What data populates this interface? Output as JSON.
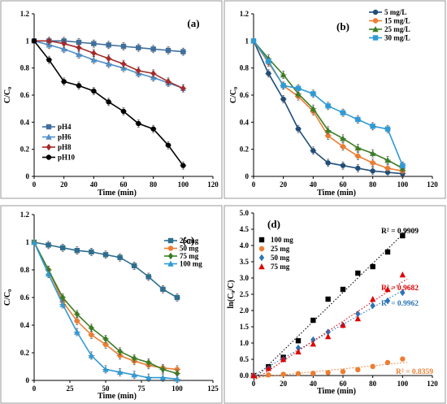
{
  "chart_data": [
    {
      "type": "line",
      "panel_label": "(a)",
      "xlabel": "Time (min)",
      "ylabel": "C/C₀",
      "xlim": [
        0,
        120
      ],
      "ylim": [
        0,
        1.2
      ],
      "xticks": [
        0,
        20,
        40,
        60,
        80,
        100,
        120
      ],
      "yticks": [
        0,
        0.2,
        0.4,
        0.6,
        0.8,
        1,
        1.2
      ],
      "ytick_labels": [
        "0",
        "0.2",
        "0.4",
        "0.6",
        "0.8",
        "1",
        "1.2"
      ],
      "legend_position": "bottom-left",
      "error_bars": true,
      "series": [
        {
          "name": "pH4",
          "color": "#3F6F9E",
          "marker": "square",
          "x": [
            0,
            10,
            20,
            30,
            40,
            50,
            60,
            70,
            80,
            90,
            100
          ],
          "y": [
            1.0,
            1.0,
            1.0,
            0.99,
            0.98,
            0.97,
            0.96,
            0.95,
            0.94,
            0.93,
            0.92
          ]
        },
        {
          "name": "pH6",
          "color": "#4F8FC8",
          "marker": "triangle",
          "x": [
            0,
            10,
            20,
            30,
            40,
            50,
            60,
            70,
            80,
            90,
            100
          ],
          "y": [
            1.0,
            0.97,
            0.94,
            0.9,
            0.86,
            0.83,
            0.8,
            0.76,
            0.73,
            0.69,
            0.65
          ]
        },
        {
          "name": "pH8",
          "color": "#A52A2A",
          "marker": "diamond",
          "x": [
            0,
            10,
            20,
            30,
            40,
            50,
            60,
            70,
            80,
            90,
            100
          ],
          "y": [
            1.0,
            1.0,
            0.98,
            0.95,
            0.91,
            0.87,
            0.83,
            0.78,
            0.76,
            0.7,
            0.65
          ]
        },
        {
          "name": "pH10",
          "color": "#000000",
          "marker": "circle",
          "x": [
            0,
            10,
            20,
            30,
            40,
            50,
            60,
            70,
            80,
            90,
            100
          ],
          "y": [
            1.0,
            0.86,
            0.7,
            0.67,
            0.63,
            0.55,
            0.48,
            0.39,
            0.35,
            0.23,
            0.08
          ]
        }
      ]
    },
    {
      "type": "line",
      "panel_label": "(b)",
      "xlabel": "Time (min)",
      "ylabel": "C/C₀",
      "xlim": [
        0,
        120
      ],
      "ylim": [
        0,
        1.2
      ],
      "xticks": [
        0,
        20,
        40,
        60,
        80,
        100,
        120
      ],
      "yticks": [
        0,
        0.2,
        0.4,
        0.6,
        0.8,
        1,
        1.2
      ],
      "ytick_labels": [
        "0",
        "0.2",
        "0.4",
        "0.6",
        "0.8",
        "1",
        "1.2"
      ],
      "legend_position": "top-right",
      "error_bars": true,
      "series": [
        {
          "name": "5 mg/L",
          "color": "#1F4E79",
          "marker": "circle",
          "x": [
            0,
            10,
            20,
            30,
            40,
            50,
            60,
            70,
            80,
            90,
            100
          ],
          "y": [
            1.0,
            0.76,
            0.57,
            0.35,
            0.19,
            0.1,
            0.08,
            0.06,
            0.04,
            0.03,
            0.02
          ]
        },
        {
          "name": "15 mg/L",
          "color": "#ED7D31",
          "marker": "circle",
          "x": [
            0,
            10,
            20,
            30,
            40,
            50,
            60,
            70,
            80,
            90,
            100
          ],
          "y": [
            1.0,
            0.84,
            0.67,
            0.59,
            0.48,
            0.3,
            0.22,
            0.15,
            0.1,
            0.06,
            0.04
          ]
        },
        {
          "name": "25 mg/L",
          "color": "#3B7D23",
          "marker": "triangle",
          "x": [
            0,
            10,
            20,
            30,
            40,
            50,
            60,
            70,
            80,
            90,
            100
          ],
          "y": [
            1.0,
            0.87,
            0.75,
            0.61,
            0.5,
            0.34,
            0.28,
            0.21,
            0.17,
            0.12,
            0.06
          ]
        },
        {
          "name": "30 mg/L",
          "color": "#2E9BD6",
          "marker": "square",
          "x": [
            0,
            10,
            20,
            30,
            40,
            50,
            60,
            70,
            80,
            90,
            100
          ],
          "y": [
            1.0,
            0.85,
            0.67,
            0.65,
            0.61,
            0.52,
            0.47,
            0.42,
            0.37,
            0.35,
            0.08
          ]
        }
      ]
    },
    {
      "type": "line",
      "panel_label": "(c)",
      "xlabel": "Time (min)",
      "ylabel": "C/C₀",
      "xlim": [
        0,
        125
      ],
      "ylim": [
        0,
        1.2
      ],
      "xticks": [
        0,
        25,
        50,
        75,
        100,
        125
      ],
      "yticks": [
        0,
        0.2,
        0.4,
        0.6,
        0.8,
        1,
        1.2
      ],
      "ytick_labels": [
        "0",
        "0.2",
        "0.4",
        "0.6",
        "0.8",
        "1",
        "1.2"
      ],
      "legend_position": "top-right",
      "error_bars": true,
      "series": [
        {
          "name": "25 mg",
          "color": "#2E6E8E",
          "marker": "square",
          "x": [
            0,
            10,
            20,
            30,
            40,
            50,
            60,
            70,
            80,
            90,
            100
          ],
          "y": [
            1.0,
            0.98,
            0.96,
            0.94,
            0.93,
            0.91,
            0.89,
            0.83,
            0.75,
            0.66,
            0.6
          ]
        },
        {
          "name": "50 mg",
          "color": "#ED7D31",
          "marker": "circle",
          "x": [
            0,
            10,
            20,
            30,
            40,
            50,
            60,
            70,
            80,
            90,
            100
          ],
          "y": [
            1.0,
            0.8,
            0.57,
            0.43,
            0.33,
            0.26,
            0.18,
            0.14,
            0.11,
            0.09,
            0.08
          ]
        },
        {
          "name": "75 mg",
          "color": "#3B7D23",
          "marker": "diamond",
          "x": [
            0,
            10,
            20,
            30,
            40,
            50,
            60,
            70,
            80,
            90,
            100
          ],
          "y": [
            1.0,
            0.8,
            0.6,
            0.48,
            0.38,
            0.3,
            0.21,
            0.16,
            0.13,
            0.08,
            0.05
          ]
        },
        {
          "name": "100 mg",
          "color": "#2E9BD6",
          "marker": "triangle",
          "x": [
            0,
            10,
            20,
            30,
            40,
            50,
            60,
            70,
            80,
            90,
            100
          ],
          "y": [
            1.0,
            0.77,
            0.55,
            0.35,
            0.18,
            0.08,
            0.06,
            0.04,
            0.02,
            0.02,
            0.01
          ]
        }
      ]
    },
    {
      "type": "scatter",
      "panel_label": "(d)",
      "xlabel": "Time (min)",
      "ylabel": "ln(C₀/C)",
      "xlim": [
        0,
        120
      ],
      "ylim": [
        0,
        5
      ],
      "xticks": [
        0,
        20,
        40,
        60,
        80,
        100,
        120
      ],
      "yticks": [
        0,
        0.5,
        1,
        1.5,
        2,
        2.5,
        3,
        3.5,
        4,
        4.5,
        5
      ],
      "ytick_labels": [
        "0.0",
        "0.5",
        "1.0",
        "1.5",
        "2.0",
        "2.5",
        "3.0",
        "3.5",
        "4.0",
        "4.5",
        "5.0"
      ],
      "legend_position": "top-left",
      "trendlines": true,
      "series": [
        {
          "name": "100 mg",
          "color": "#000000",
          "marker": "square",
          "r2": "R² = 0.9909",
          "r2_color": "#000000",
          "x": [
            0,
            10,
            20,
            30,
            40,
            50,
            60,
            70,
            80,
            90,
            100
          ],
          "y": [
            0.0,
            0.27,
            0.56,
            1.07,
            1.7,
            2.35,
            2.65,
            3.15,
            3.35,
            3.8,
            4.3
          ]
        },
        {
          "name": "25 mg",
          "color": "#ED7D31",
          "marker": "circle",
          "r2": "R² = 0.8359",
          "r2_color": "#ED7D31",
          "x": [
            0,
            10,
            20,
            30,
            40,
            50,
            60,
            70,
            80,
            90,
            100
          ],
          "y": [
            0.0,
            0.02,
            0.04,
            0.06,
            0.07,
            0.09,
            0.12,
            0.18,
            0.28,
            0.4,
            0.51
          ]
        },
        {
          "name": "50 mg",
          "color": "#2E75B6",
          "marker": "diamond",
          "r2": "R² = 0.9962",
          "r2_color": "#2E75B6",
          "x": [
            0,
            10,
            20,
            30,
            40,
            50,
            60,
            70,
            80,
            90,
            100
          ],
          "y": [
            0.0,
            0.22,
            0.5,
            0.85,
            1.1,
            1.34,
            1.55,
            1.9,
            2.15,
            2.3,
            2.55
          ]
        },
        {
          "name": "75 mg",
          "color": "#E00000",
          "marker": "triangle",
          "r2": "R² = 0.9682",
          "r2_color": "#E00000",
          "x": [
            0,
            10,
            20,
            30,
            40,
            50,
            60,
            70,
            80,
            90,
            100
          ],
          "y": [
            0.0,
            0.22,
            0.5,
            0.73,
            0.97,
            1.2,
            1.55,
            1.75,
            2.35,
            2.65,
            3.1
          ]
        }
      ]
    }
  ]
}
